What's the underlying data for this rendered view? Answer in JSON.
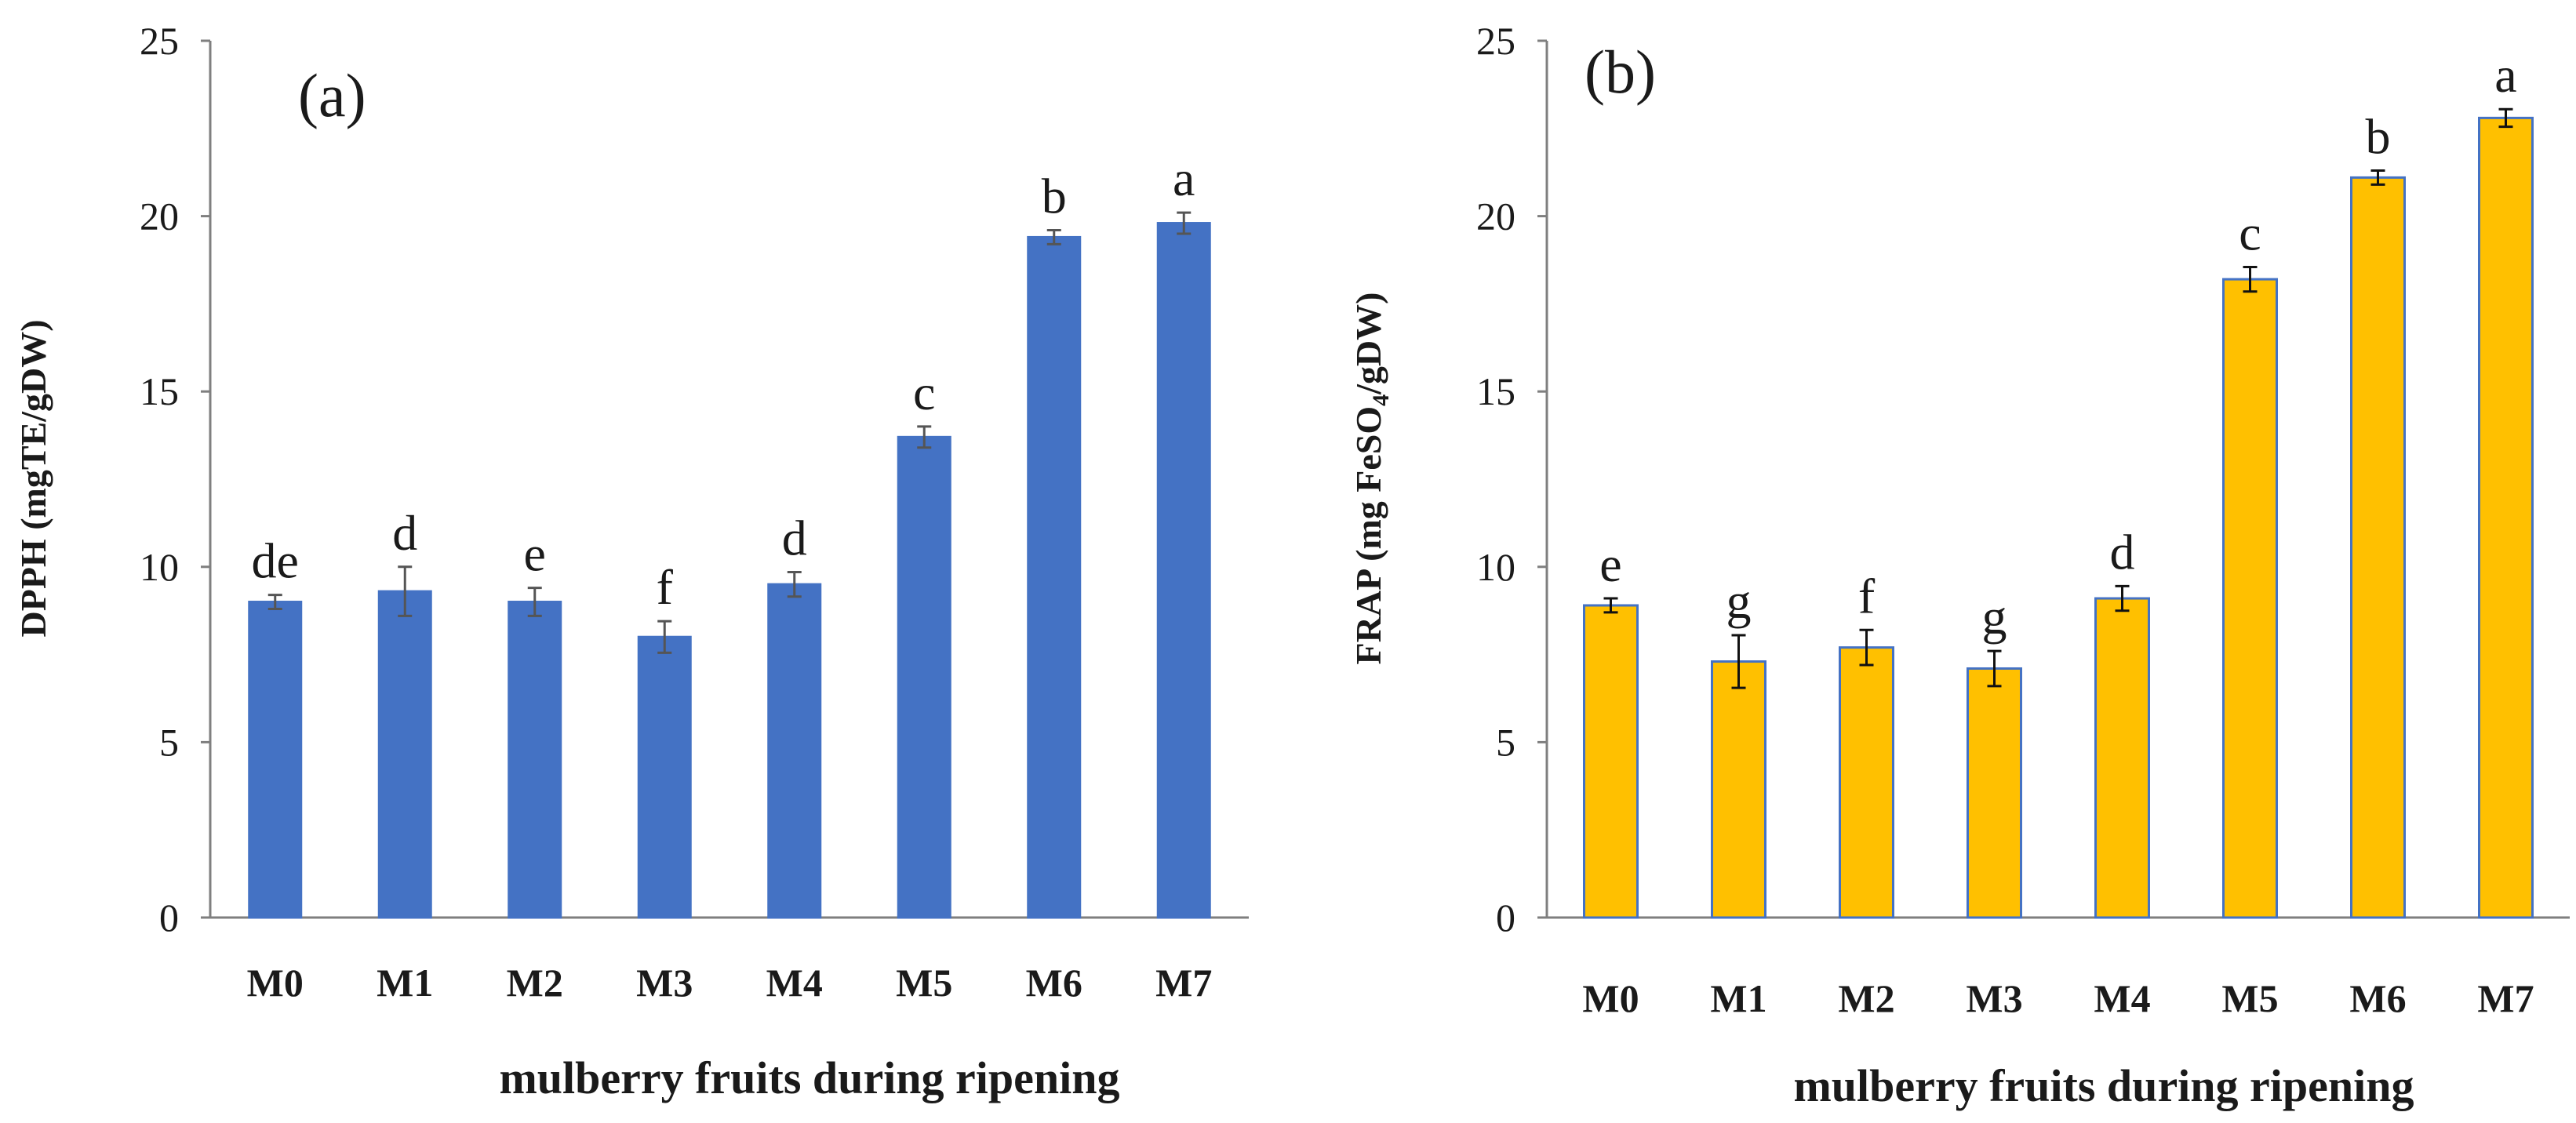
{
  "chart_data": [
    {
      "type": "bar",
      "panel_label": "(a)",
      "categories": [
        "M0",
        "M1",
        "M2",
        "M3",
        "M4",
        "M5",
        "M6",
        "M7"
      ],
      "values": [
        9.0,
        9.3,
        9.0,
        8.0,
        9.5,
        13.7,
        19.4,
        19.8
      ],
      "errors": [
        0.2,
        0.7,
        0.4,
        0.45,
        0.35,
        0.3,
        0.2,
        0.3
      ],
      "significance_letters": [
        "de",
        "d",
        "e",
        "f",
        "d",
        "c",
        "b",
        "a"
      ],
      "xlabel": "mulberry fruits during ripening",
      "ylabel": "DPPH (mgTE/gDW)",
      "ylim": [
        0,
        25
      ],
      "yticks": [
        "0",
        "5",
        "10",
        "15",
        "20",
        "25"
      ],
      "bar_color": "#4472C4",
      "bar_edge_color": "#4472C4",
      "error_color": "#555555"
    },
    {
      "type": "bar",
      "panel_label": "(b)",
      "categories": [
        "M0",
        "M1",
        "M2",
        "M3",
        "M4",
        "M5",
        "M6",
        "M7"
      ],
      "values": [
        8.9,
        7.3,
        7.7,
        7.1,
        9.1,
        18.2,
        21.1,
        22.8
      ],
      "errors": [
        0.2,
        0.75,
        0.5,
        0.5,
        0.35,
        0.35,
        0.2,
        0.25
      ],
      "significance_letters": [
        "e",
        "g",
        "f",
        "g",
        "d",
        "c",
        "b",
        "a"
      ],
      "xlabel": "mulberry fruits during ripening",
      "ylabel_main": "FRAP (mg FeSO",
      "ylabel_sub": "4",
      "ylabel_tail": "/gDW)",
      "ylim": [
        0,
        25
      ],
      "yticks": [
        "0",
        "5",
        "10",
        "15",
        "20",
        "25"
      ],
      "bar_color": "#FFC000",
      "bar_edge_color": "#4472C4",
      "error_color": "#111111"
    }
  ]
}
